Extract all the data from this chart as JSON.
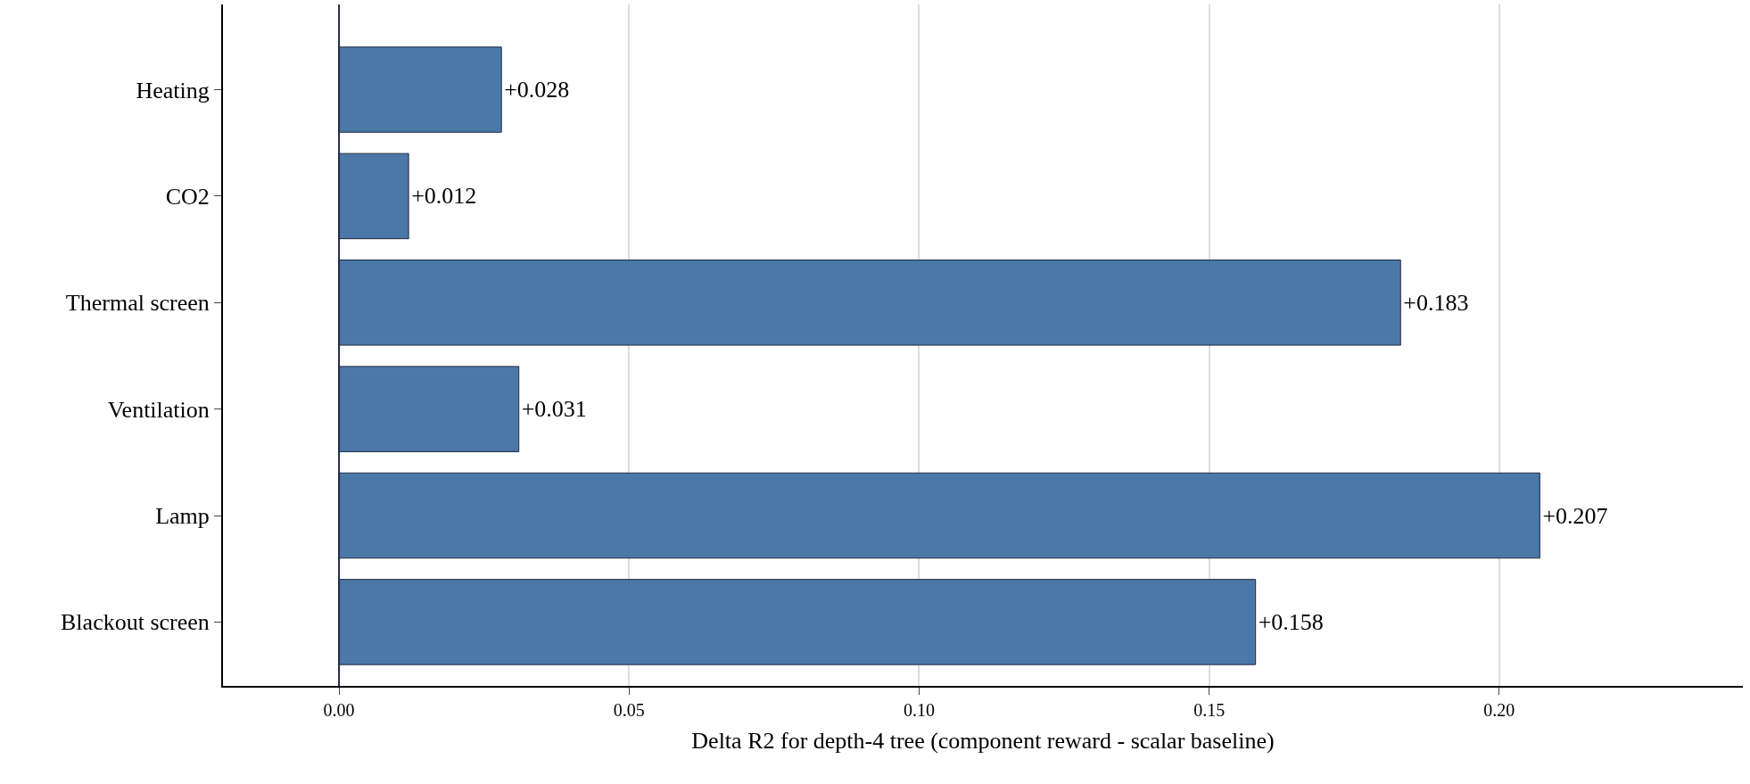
{
  "chart_data": {
    "type": "bar",
    "orientation": "horizontal",
    "xlabel": "Delta R2 for depth-4 tree (component reward - scalar baseline)",
    "categories": [
      "Heating",
      "CO2",
      "Thermal screen",
      "Ventilation",
      "Lamp",
      "Blackout screen"
    ],
    "values": [
      0.028,
      0.012,
      0.183,
      0.031,
      0.207,
      0.158
    ],
    "value_labels": [
      "+0.028",
      "+0.012",
      "+0.183",
      "+0.031",
      "+0.207",
      "+0.158"
    ],
    "color": "#4c78a8",
    "xlim": [
      -0.02,
      0.242
    ],
    "xticks": [
      {
        "value": 0,
        "label": "0.00"
      },
      {
        "value": 0.05,
        "label": "0.05"
      },
      {
        "value": 0.1,
        "label": "0.10"
      },
      {
        "value": 0.15,
        "label": "0.15"
      },
      {
        "value": 0.2,
        "label": "0.20"
      }
    ],
    "grid": "x",
    "ref_lines": [
      {
        "axis": "x",
        "value": 0,
        "color": "#1f2a44"
      }
    ]
  }
}
